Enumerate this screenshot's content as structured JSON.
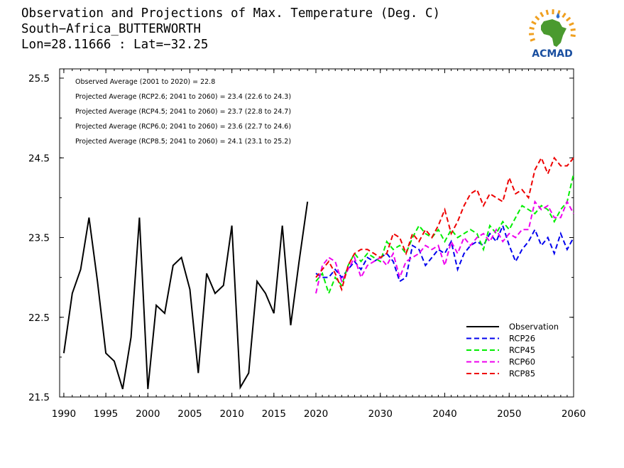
{
  "header": {
    "title_line1": "Observation and Projections of Max. Temperature (Deg. C)",
    "title_line2": "South−Africa_BUTTERWORTH",
    "title_line3": "Lon=28.11666 : Lat=−32.25"
  },
  "logo": {
    "text": "ACMAD",
    "icon": "africa-map-sun-logo",
    "colors": {
      "africa": "#4a9a2f",
      "sun": "#f0a020",
      "text": "#1a4fa0"
    }
  },
  "chart_data": {
    "type": "line",
    "annotations": [
      "Observed Average (2001 to 2020) = 22.8",
      "Projected Average (RCP2.6; 2041 to 2060) = 23.4 (22.6 to 24.3)",
      "Projected Average (RCP4.5; 2041 to 2060) = 23.7 (22.8 to 24.7)",
      "Projected Average (RCP6.0; 2041 to 2060) = 23.6 (22.7 to 24.6)",
      "Projected Average (RCP8.5; 2041 to 2060) = 24.1 (23.1 to 25.2)"
    ],
    "ylim": [
      21.5,
      25.5
    ],
    "y_ticks": [
      21.5,
      22.5,
      23.5,
      24.5,
      25.5
    ],
    "y_tick_labels": [
      "21.5",
      "22.5",
      "23.5",
      "24.5",
      "25.5"
    ],
    "x_ticks_left": [
      1990,
      1995,
      2000,
      2005,
      2010,
      2015,
      2020
    ],
    "x_ticks_right": [
      2030,
      2040,
      2050,
      2060
    ],
    "legend": {
      "position": "bottom-right"
    },
    "series": [
      {
        "name": "Observation",
        "color": "#000000",
        "dashed": false,
        "x": [
          1990,
          1991,
          1992,
          1993,
          1994,
          1995,
          1996,
          1997,
          1998,
          1999,
          2000,
          2001,
          2002,
          2003,
          2004,
          2005,
          2006,
          2007,
          2008,
          2009,
          2010,
          2011,
          2012,
          2013,
          2014,
          2015,
          2016,
          2017,
          2018,
          2019,
          2020
        ],
        "values": [
          22.05,
          22.8,
          23.1,
          23.75,
          22.95,
          22.05,
          21.95,
          21.6,
          22.25,
          23.75,
          21.6,
          22.65,
          22.55,
          23.15,
          23.25,
          22.85,
          21.8,
          23.05,
          22.8,
          22.9,
          23.65,
          21.62,
          21.8,
          22.95,
          22.8,
          22.55,
          23.65,
          22.4,
          23.2,
          23.95,
          null
        ]
      },
      {
        "name": "RCP26",
        "color": "#0000ee",
        "dashed": true,
        "x": [
          2020,
          2021,
          2022,
          2023,
          2024,
          2025,
          2026,
          2027,
          2028,
          2029,
          2030,
          2031,
          2032,
          2033,
          2034,
          2035,
          2036,
          2037,
          2038,
          2039,
          2040,
          2041,
          2042,
          2043,
          2044,
          2045,
          2046,
          2047,
          2048,
          2049,
          2050,
          2051,
          2052,
          2053,
          2054,
          2055,
          2056,
          2057,
          2058,
          2059,
          2060
        ],
        "values": [
          23.05,
          23.0,
          23.0,
          23.1,
          23.0,
          23.1,
          23.2,
          23.1,
          23.25,
          23.2,
          23.25,
          23.3,
          23.2,
          22.95,
          23.0,
          23.4,
          23.35,
          23.15,
          23.25,
          23.35,
          23.3,
          23.45,
          23.1,
          23.3,
          23.4,
          23.45,
          23.4,
          23.55,
          23.45,
          23.65,
          23.4,
          23.2,
          23.35,
          23.45,
          23.6,
          23.4,
          23.5,
          23.3,
          23.55,
          23.35,
          23.5
        ]
      },
      {
        "name": "RCP45",
        "color": "#00ee00",
        "dashed": true,
        "x": [
          2020,
          2021,
          2022,
          2023,
          2024,
          2025,
          2026,
          2027,
          2028,
          2029,
          2030,
          2031,
          2032,
          2033,
          2034,
          2035,
          2036,
          2037,
          2038,
          2039,
          2040,
          2041,
          2042,
          2043,
          2044,
          2045,
          2046,
          2047,
          2048,
          2049,
          2050,
          2051,
          2052,
          2053,
          2054,
          2055,
          2056,
          2057,
          2058,
          2059,
          2060
        ],
        "values": [
          22.95,
          23.05,
          22.8,
          23.0,
          22.9,
          23.15,
          23.3,
          23.2,
          23.3,
          23.25,
          23.2,
          23.45,
          23.35,
          23.4,
          23.3,
          23.5,
          23.65,
          23.55,
          23.5,
          23.6,
          23.45,
          23.6,
          23.5,
          23.55,
          23.6,
          23.55,
          23.35,
          23.65,
          23.55,
          23.7,
          23.6,
          23.75,
          23.9,
          23.85,
          23.8,
          23.9,
          23.85,
          23.7,
          23.85,
          23.95,
          24.3
        ]
      },
      {
        "name": "RCP60",
        "color": "#ee00ee",
        "dashed": true,
        "x": [
          2020,
          2021,
          2022,
          2023,
          2024,
          2025,
          2026,
          2027,
          2028,
          2029,
          2030,
          2031,
          2032,
          2033,
          2034,
          2035,
          2036,
          2037,
          2038,
          2039,
          2040,
          2041,
          2042,
          2043,
          2044,
          2045,
          2046,
          2047,
          2048,
          2049,
          2050,
          2051,
          2052,
          2053,
          2054,
          2055,
          2056,
          2057,
          2058,
          2059,
          2060
        ],
        "values": [
          22.8,
          23.15,
          23.25,
          23.2,
          22.95,
          23.1,
          23.25,
          23.0,
          23.15,
          23.2,
          23.25,
          23.15,
          23.3,
          23.0,
          23.2,
          23.25,
          23.3,
          23.4,
          23.35,
          23.4,
          23.15,
          23.45,
          23.3,
          23.5,
          23.4,
          23.5,
          23.55,
          23.45,
          23.6,
          23.45,
          23.55,
          23.5,
          23.6,
          23.6,
          23.95,
          23.85,
          23.9,
          23.75,
          23.75,
          23.95,
          23.8
        ]
      },
      {
        "name": "RCP85",
        "color": "#ee0000",
        "dashed": true,
        "x": [
          2020,
          2021,
          2022,
          2023,
          2024,
          2025,
          2026,
          2027,
          2028,
          2029,
          2030,
          2031,
          2032,
          2033,
          2034,
          2035,
          2036,
          2037,
          2038,
          2039,
          2040,
          2041,
          2042,
          2043,
          2044,
          2045,
          2046,
          2047,
          2048,
          2049,
          2050,
          2051,
          2052,
          2053,
          2054,
          2055,
          2056,
          2057,
          2058,
          2059,
          2060
        ],
        "values": [
          23.0,
          23.1,
          23.2,
          23.05,
          22.85,
          23.15,
          23.3,
          23.35,
          23.35,
          23.3,
          23.25,
          23.3,
          23.55,
          23.5,
          23.3,
          23.55,
          23.45,
          23.6,
          23.5,
          23.65,
          23.85,
          23.55,
          23.7,
          23.9,
          24.05,
          24.1,
          23.9,
          24.05,
          24.0,
          23.95,
          24.25,
          24.05,
          24.1,
          24.0,
          24.35,
          24.5,
          24.3,
          24.5,
          24.4,
          24.4,
          24.5
        ]
      }
    ]
  }
}
